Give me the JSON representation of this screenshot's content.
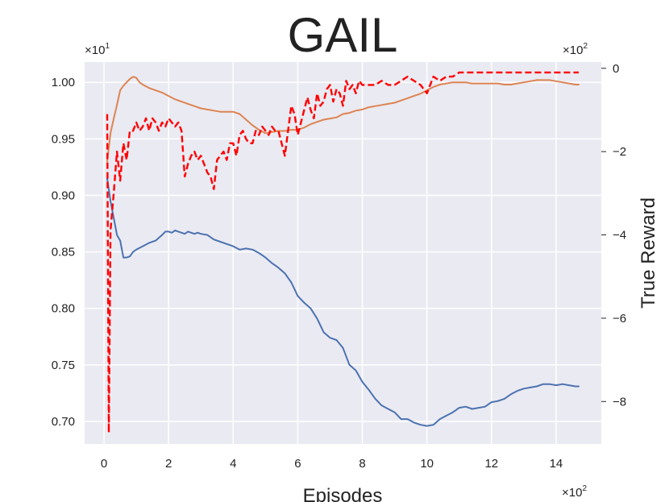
{
  "chart_data": {
    "type": "line",
    "title": "GAIL",
    "xlabel": "Episodes",
    "ylabel_right": "True Reward",
    "x_multiplier": "×10",
    "x_multiplier_exp": "2",
    "y_left_multiplier": "×10",
    "y_left_multiplier_exp": "1",
    "y_right_multiplier": "×10",
    "y_right_multiplier_exp": "2",
    "xlim": [
      -0.6,
      15.4
    ],
    "ylim_left": [
      0.68,
      1.018
    ],
    "ylim_right": [
      -9.02,
      0.15
    ],
    "x_ticks": [
      0,
      2,
      4,
      6,
      8,
      10,
      12,
      14
    ],
    "y_left_ticks": [
      0.7,
      0.75,
      0.8,
      0.85,
      0.9,
      0.95,
      1.0
    ],
    "y_right_ticks": [
      0,
      -2,
      -4,
      -6,
      -8
    ],
    "grid": true,
    "background": "#eaeaf2",
    "series": [
      {
        "axis": "left",
        "color": "#4c72b0",
        "dash": "solid",
        "x": [
          0.1,
          0.2,
          0.3,
          0.4,
          0.5,
          0.6,
          0.7,
          0.8,
          0.9,
          1.0,
          1.2,
          1.4,
          1.6,
          1.8,
          1.9,
          2.0,
          2.1,
          2.2,
          2.3,
          2.4,
          2.5,
          2.6,
          2.7,
          2.8,
          2.9,
          3.0,
          3.2,
          3.4,
          3.6,
          3.8,
          4.0,
          4.2,
          4.4,
          4.6,
          4.8,
          5.0,
          5.2,
          5.4,
          5.6,
          5.8,
          6.0,
          6.2,
          6.4,
          6.6,
          6.8,
          7.0,
          7.2,
          7.4,
          7.6,
          7.8,
          8.0,
          8.2,
          8.4,
          8.6,
          8.8,
          9.0,
          9.2,
          9.4,
          9.6,
          9.8,
          10.0,
          10.2,
          10.4,
          10.6,
          10.8,
          11.0,
          11.2,
          11.4,
          11.6,
          11.8,
          12.0,
          12.2,
          12.4,
          12.6,
          12.8,
          13.0,
          13.2,
          13.4,
          13.6,
          13.8,
          14.0,
          14.2,
          14.4,
          14.6,
          14.7
        ],
        "values": [
          0.915,
          0.895,
          0.88,
          0.865,
          0.86,
          0.845,
          0.845,
          0.846,
          0.85,
          0.852,
          0.855,
          0.858,
          0.86,
          0.865,
          0.868,
          0.868,
          0.867,
          0.869,
          0.868,
          0.867,
          0.866,
          0.868,
          0.867,
          0.866,
          0.867,
          0.866,
          0.865,
          0.861,
          0.859,
          0.857,
          0.855,
          0.852,
          0.853,
          0.852,
          0.849,
          0.845,
          0.84,
          0.836,
          0.831,
          0.823,
          0.811,
          0.805,
          0.8,
          0.791,
          0.779,
          0.774,
          0.772,
          0.765,
          0.75,
          0.745,
          0.735,
          0.728,
          0.72,
          0.714,
          0.711,
          0.708,
          0.702,
          0.702,
          0.699,
          0.697,
          0.696,
          0.697,
          0.702,
          0.705,
          0.708,
          0.712,
          0.713,
          0.711,
          0.712,
          0.713,
          0.717,
          0.718,
          0.72,
          0.724,
          0.727,
          0.729,
          0.73,
          0.731,
          0.733,
          0.733,
          0.732,
          0.733,
          0.732,
          0.731,
          0.731
        ]
      },
      {
        "axis": "left",
        "color": "#dd8452",
        "dash": "solid",
        "x": [
          0.1,
          0.2,
          0.3,
          0.4,
          0.5,
          0.6,
          0.7,
          0.8,
          0.9,
          1.0,
          1.1,
          1.2,
          1.4,
          1.6,
          1.8,
          2.0,
          2.2,
          2.4,
          2.6,
          2.8,
          3.0,
          3.2,
          3.4,
          3.6,
          3.8,
          4.0,
          4.2,
          4.4,
          4.6,
          4.8,
          5.0,
          5.2,
          5.4,
          5.6,
          5.8,
          6.0,
          6.2,
          6.4,
          6.6,
          6.8,
          7.0,
          7.2,
          7.4,
          7.6,
          7.8,
          8.0,
          8.2,
          8.4,
          8.6,
          8.8,
          9.0,
          9.2,
          9.4,
          9.6,
          9.8,
          10.0,
          10.2,
          10.4,
          10.6,
          10.8,
          11.0,
          11.2,
          11.4,
          11.6,
          11.8,
          12.0,
          12.2,
          12.4,
          12.6,
          12.8,
          13.0,
          13.2,
          13.4,
          13.6,
          13.8,
          14.0,
          14.2,
          14.4,
          14.6,
          14.7
        ],
        "values": [
          0.93,
          0.955,
          0.968,
          0.98,
          0.993,
          0.997,
          1.0,
          1.003,
          1.005,
          1.004,
          1.0,
          0.998,
          0.995,
          0.993,
          0.991,
          0.988,
          0.985,
          0.983,
          0.981,
          0.979,
          0.977,
          0.976,
          0.975,
          0.974,
          0.974,
          0.974,
          0.972,
          0.967,
          0.962,
          0.958,
          0.955,
          0.956,
          0.957,
          0.957,
          0.958,
          0.958,
          0.96,
          0.963,
          0.965,
          0.967,
          0.968,
          0.969,
          0.972,
          0.973,
          0.975,
          0.976,
          0.978,
          0.979,
          0.98,
          0.981,
          0.982,
          0.984,
          0.986,
          0.988,
          0.99,
          0.993,
          0.996,
          0.998,
          0.999,
          1.0,
          1.0,
          1.0,
          0.999,
          0.999,
          0.999,
          0.999,
          0.999,
          0.998,
          0.998,
          0.999,
          1.0,
          1.001,
          1.002,
          1.002,
          1.002,
          1.001,
          1.0,
          0.999,
          0.998,
          0.998
        ]
      },
      {
        "axis": "right",
        "color": "#ff0000",
        "dash": "dashed",
        "x": [
          0.1,
          0.15,
          0.2,
          0.3,
          0.4,
          0.5,
          0.6,
          0.7,
          0.8,
          0.9,
          1.0,
          1.1,
          1.2,
          1.3,
          1.4,
          1.5,
          1.6,
          1.7,
          1.8,
          1.9,
          2.0,
          2.1,
          2.2,
          2.3,
          2.4,
          2.5,
          2.6,
          2.7,
          2.8,
          2.9,
          3.0,
          3.1,
          3.2,
          3.3,
          3.4,
          3.5,
          3.6,
          3.7,
          3.8,
          3.9,
          4.0,
          4.1,
          4.2,
          4.3,
          4.4,
          4.5,
          4.6,
          4.7,
          4.8,
          4.9,
          5.0,
          5.1,
          5.2,
          5.3,
          5.4,
          5.5,
          5.6,
          5.7,
          5.8,
          5.9,
          6.0,
          6.1,
          6.2,
          6.3,
          6.4,
          6.5,
          6.6,
          6.7,
          6.8,
          6.9,
          7.0,
          7.1,
          7.2,
          7.3,
          7.4,
          7.5,
          7.6,
          7.7,
          7.8,
          7.9,
          8.0,
          8.2,
          8.4,
          8.6,
          8.8,
          9.0,
          9.2,
          9.4,
          9.6,
          9.8,
          10.0,
          10.2,
          10.4,
          10.6,
          10.8,
          11.0,
          11.5,
          12.0,
          12.5,
          13.0,
          13.5,
          14.0,
          14.5,
          14.7
        ],
        "values": [
          -1.1,
          -8.75,
          -3.9,
          -3.0,
          -2.0,
          -2.7,
          -1.8,
          -2.2,
          -1.5,
          -1.5,
          -1.3,
          -1.5,
          -1.4,
          -1.2,
          -1.5,
          -1.2,
          -1.3,
          -1.5,
          -1.3,
          -1.4,
          -1.2,
          -1.3,
          -1.4,
          -1.3,
          -1.5,
          -2.6,
          -2.3,
          -2.1,
          -2.0,
          -2.2,
          -2.1,
          -2.3,
          -2.5,
          -2.6,
          -2.9,
          -2.2,
          -2.1,
          -2.0,
          -2.2,
          -1.8,
          -1.8,
          -2.1,
          -1.6,
          -1.5,
          -1.7,
          -1.8,
          -1.8,
          -1.5,
          -1.6,
          -1.4,
          -1.5,
          -1.6,
          -1.4,
          -1.5,
          -1.5,
          -1.8,
          -2.1,
          -1.5,
          -0.9,
          -1.1,
          -1.6,
          -1.3,
          -1.0,
          -0.7,
          -1.0,
          -1.2,
          -0.6,
          -0.9,
          -0.8,
          -0.5,
          -0.4,
          -0.8,
          -0.5,
          -0.6,
          -0.9,
          -0.3,
          -0.5,
          -0.4,
          -0.6,
          -0.3,
          -0.4,
          -0.4,
          -0.4,
          -0.3,
          -0.4,
          -0.4,
          -0.3,
          -0.2,
          -0.3,
          -0.4,
          -0.6,
          -0.2,
          -0.3,
          -0.2,
          -0.2,
          -0.1,
          -0.1,
          -0.1,
          -0.1,
          -0.1,
          -0.1,
          -0.1,
          -0.1,
          -0.1
        ]
      }
    ]
  }
}
